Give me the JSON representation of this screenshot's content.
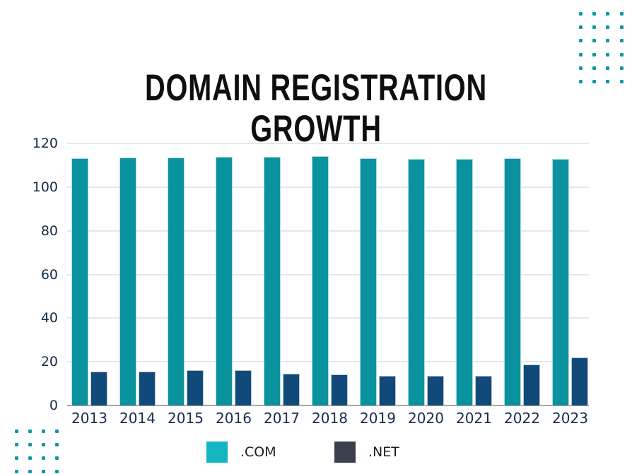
{
  "title": {
    "text": "DOMAIN REGISTRATION GROWTH"
  },
  "chart_data": {
    "type": "bar",
    "categories": [
      "2013",
      "2014",
      "2015",
      "2016",
      "2017",
      "2018",
      "2019",
      "2020",
      "2021",
      "2022",
      "2023"
    ],
    "series": [
      {
        "name": ".COM",
        "values": [
          113.1,
          113.4,
          113.4,
          113.7,
          114.0,
          114.2,
          113.1,
          112.9,
          112.9,
          113.1,
          112.9
        ]
      },
      {
        "name": ".NET",
        "values": [
          15.4,
          15.4,
          16.2,
          16.1,
          14.7,
          14.1,
          13.6,
          13.6,
          13.7,
          18.9,
          21.9
        ]
      }
    ],
    "title": "DOMAIN REGISTRATION GROWTH",
    "xlabel": "",
    "ylabel": "",
    "ylim": [
      0,
      120
    ],
    "yticks": [
      0,
      20,
      40,
      60,
      80,
      100,
      120
    ],
    "grid": true,
    "legend_position": "bottom"
  },
  "legend": {
    "items": [
      {
        "label": ".COM"
      },
      {
        "label": ".NET"
      }
    ]
  },
  "colors": {
    "background": "#ffffff",
    "title_text": "#0f0f0f",
    "com_bar": "#0a929e",
    "com_bar_edge": "#aadde1",
    "net_bar": "#10497a",
    "net_bar_edge": "#bcc9d8",
    "com_legend": "#13b5c0",
    "net_legend": "#3b404c",
    "grid_line": "#e7e7e7",
    "axis_line": "#a5a5a5",
    "tick_text": "#172b4d",
    "legend_text": "#1c1c1c",
    "decor_dot": "#0c97a6"
  }
}
